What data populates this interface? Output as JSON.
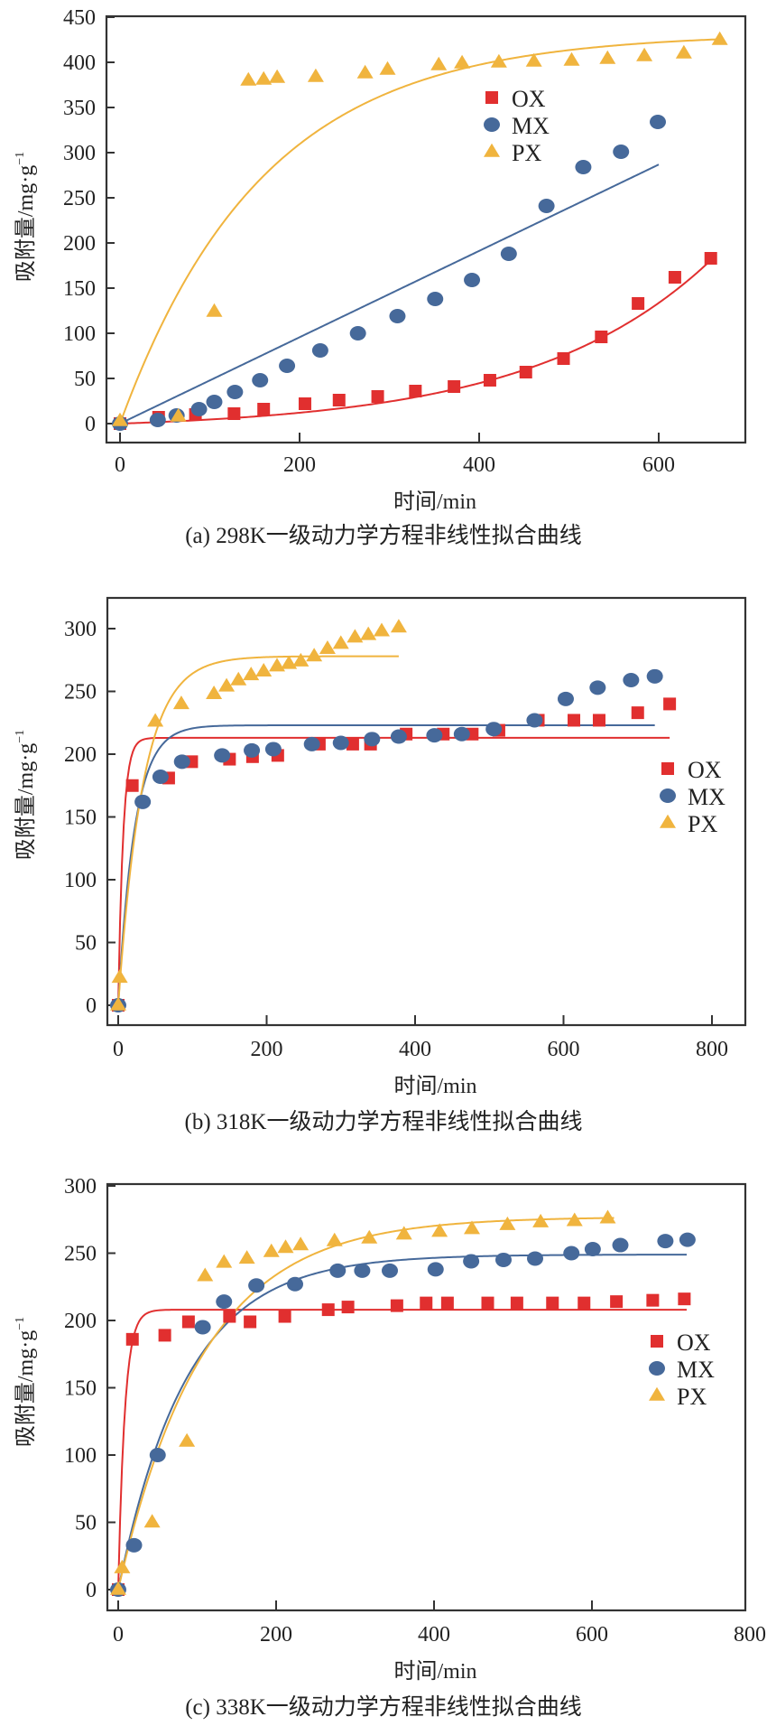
{
  "colors": {
    "OX": "#e12f2f",
    "MX": "#46699a",
    "PX": "#f0b43e",
    "axis": "#333333"
  },
  "chart_data": [
    {
      "type": "scatter",
      "panel": "a",
      "caption": "(a) 298K一级动力学方程非线性拟合曲线",
      "title": "",
      "xlabel": "时间/min",
      "ylabel": "吸附量/mg·g",
      "ylabel_sup": "−1",
      "xlim": [
        -15,
        695
      ],
      "ylim": [
        -20,
        450
      ],
      "xticks": [
        0,
        200,
        400,
        600
      ],
      "yticks": [
        0,
        50,
        100,
        150,
        200,
        250,
        300,
        350,
        400,
        450
      ],
      "grid": false,
      "legend_position": "top-center",
      "legend": [
        "OX",
        "MX",
        "PX"
      ],
      "series": [
        {
          "name": "OX",
          "marker": "square",
          "x": [
            0,
            43,
            84,
            127,
            160,
            206,
            244,
            287,
            329,
            372,
            412,
            452,
            494,
            536,
            577,
            618,
            658
          ],
          "y": [
            0,
            7,
            10,
            11,
            16,
            22,
            26,
            30,
            36,
            41,
            48,
            57,
            72,
            96,
            133,
            162,
            183
          ],
          "fit": {
            "model": "exp_growth",
            "a": 7.0,
            "b": 0.005,
            "t_end": 660
          }
        },
        {
          "name": "MX",
          "marker": "circle",
          "x": [
            0,
            42,
            63,
            88,
            105,
            128,
            156,
            186,
            223,
            265,
            309,
            351,
            392,
            433,
            475,
            516,
            558,
            599
          ],
          "y": [
            0,
            4,
            9,
            16,
            24,
            35,
            48,
            64,
            81,
            100,
            119,
            138,
            159,
            188,
            241,
            284,
            301,
            334
          ],
          "fit": {
            "model": "linear",
            "slope": 0.478,
            "t_end": 600
          }
        },
        {
          "name": "PX",
          "marker": "triangle",
          "x": [
            0,
            65,
            105,
            143,
            160,
            175,
            218,
            273,
            298,
            355,
            381,
            422,
            461,
            503,
            543,
            584,
            628,
            668
          ],
          "y": [
            3,
            8,
            124,
            380,
            381,
            383,
            384,
            388,
            392,
            397,
            399,
            400,
            401,
            402,
            404,
            407,
            410,
            425
          ],
          "fit": {
            "model": "pfo",
            "qe": 432,
            "k": 0.0063,
            "t_end": 668
          }
        }
      ]
    },
    {
      "type": "scatter",
      "panel": "b",
      "caption": "(b) 318K一级动力学方程非线性拟合曲线",
      "title": "",
      "xlabel": "时间/min",
      "ylabel": "吸附量/mg·g",
      "ylabel_sup": "−1",
      "xlim": [
        -15,
        845
      ],
      "ylim": [
        -15,
        325
      ],
      "xticks": [
        0,
        200,
        400,
        600,
        800
      ],
      "yticks": [
        0,
        50,
        100,
        150,
        200,
        250,
        300
      ],
      "grid": false,
      "legend_position": "right",
      "legend": [
        "OX",
        "MX",
        "PX"
      ],
      "series": [
        {
          "name": "OX",
          "marker": "square",
          "x": [
            0,
            19,
            68,
            99,
            150,
            181,
            215,
            271,
            316,
            340,
            388,
            438,
            477,
            513,
            566,
            614,
            648,
            700,
            743
          ],
          "y": [
            0,
            175,
            181,
            194,
            196,
            198,
            199,
            208,
            208,
            208,
            216,
            216,
            216,
            219,
            227,
            227,
            227,
            233,
            240
          ],
          "fit": {
            "model": "pfo",
            "qe": 213,
            "k": 0.15,
            "t_end": 743
          }
        },
        {
          "name": "MX",
          "marker": "circle",
          "x": [
            0,
            33,
            57,
            86,
            140,
            180,
            209,
            261,
            300,
            342,
            378,
            426,
            463,
            506,
            561,
            603,
            646,
            691,
            723
          ],
          "y": [
            0,
            162,
            182,
            194,
            199,
            203,
            204,
            208,
            209,
            212,
            214,
            215,
            216,
            220,
            227,
            244,
            253,
            259,
            262
          ],
          "fit": {
            "model": "pfo",
            "qe": 223,
            "k": 0.045,
            "t_end": 723
          }
        },
        {
          "name": "PX",
          "marker": "triangle",
          "x": [
            0,
            2,
            50,
            85,
            129,
            146,
            162,
            179,
            196,
            214,
            230,
            246,
            264,
            282,
            300,
            319,
            337,
            355,
            378
          ],
          "y": [
            0,
            22,
            226,
            240,
            248,
            254,
            259,
            263,
            266,
            270,
            272,
            274,
            278,
            284,
            288,
            293,
            295,
            298,
            301
          ],
          "fit": {
            "model": "pfo",
            "qe": 278,
            "k": 0.03,
            "t_end": 378
          }
        }
      ]
    },
    {
      "type": "scatter",
      "panel": "c",
      "caption": "(c) 338K一级动力学方程非线性拟合曲线",
      "title": "",
      "xlabel": "时间/min",
      "ylabel": "吸附量/mg·g",
      "ylabel_sup": "−1",
      "xlim": [
        -15,
        795
      ],
      "ylim": [
        -15,
        300
      ],
      "xticks": [
        0,
        200,
        400,
        600,
        800
      ],
      "yticks": [
        0,
        50,
        100,
        150,
        200,
        250,
        300
      ],
      "grid": false,
      "legend_position": "right",
      "legend": [
        "OX",
        "MX",
        "PX"
      ],
      "series": [
        {
          "name": "OX",
          "marker": "square",
          "x": [
            0,
            18,
            59,
            89,
            141,
            167,
            211,
            266,
            291,
            353,
            390,
            417,
            468,
            505,
            550,
            590,
            631,
            677,
            717
          ],
          "y": [
            0,
            186,
            189,
            199,
            203,
            199,
            203,
            208,
            210,
            211,
            213,
            213,
            213,
            213,
            213,
            213,
            214,
            215,
            216
          ],
          "fit": {
            "model": "pfo",
            "qe": 208,
            "k": 0.12,
            "t_end": 720
          }
        },
        {
          "name": "MX",
          "marker": "circle",
          "x": [
            0,
            20,
            50,
            107,
            134,
            175,
            224,
            278,
            309,
            344,
            402,
            447,
            488,
            528,
            574,
            601,
            636,
            693,
            721
          ],
          "y": [
            0,
            33,
            100,
            195,
            214,
            226,
            227,
            237,
            237,
            237,
            238,
            244,
            245,
            246,
            250,
            253,
            256,
            259,
            260
          ],
          "fit": {
            "model": "pfo",
            "qe": 249,
            "k": 0.0115,
            "t_end": 720
          }
        },
        {
          "name": "PX",
          "marker": "triangle",
          "x": [
            0,
            5,
            43,
            87,
            110,
            134,
            163,
            194,
            212,
            231,
            274,
            318,
            362,
            407,
            448,
            493,
            535,
            578,
            620
          ],
          "y": [
            0,
            16,
            50,
            110,
            233,
            243,
            246,
            251,
            254,
            256,
            259,
            261,
            264,
            266,
            268,
            271,
            273,
            274,
            276
          ],
          "fit": {
            "model": "pfo",
            "qe": 277,
            "k": 0.0093,
            "t_end": 628
          }
        }
      ]
    }
  ]
}
